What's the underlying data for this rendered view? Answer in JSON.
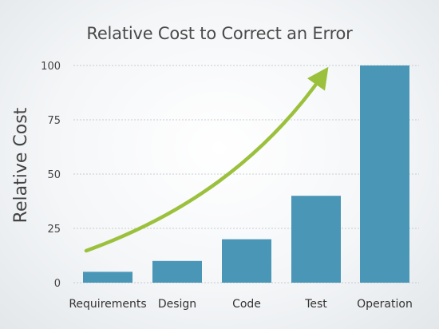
{
  "chart_data": {
    "type": "bar",
    "title": "Relative Cost to Correct an Error",
    "ylabel": "Relative Cost",
    "xlabel": "",
    "categories": [
      "Requirements",
      "Design",
      "Code",
      "Test",
      "Operation"
    ],
    "values": [
      5,
      10,
      20,
      40,
      100
    ],
    "ylim": [
      0,
      100
    ],
    "yticks": [
      0,
      25,
      50,
      75,
      100
    ],
    "grid": true,
    "bar_color": "#4a96b6",
    "annotation": {
      "type": "trend-arrow",
      "color": "#9bc13c"
    }
  }
}
